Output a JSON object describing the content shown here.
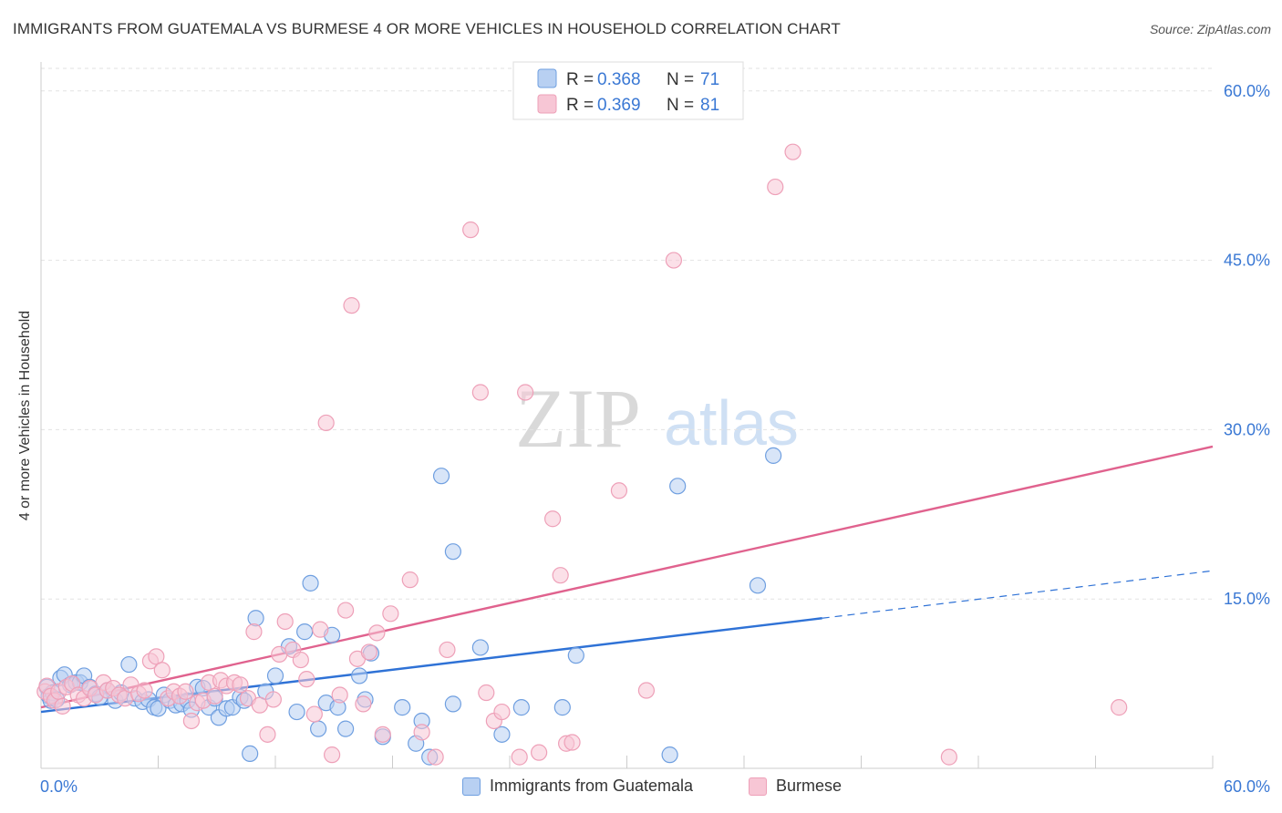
{
  "header": {
    "title": "IMMIGRANTS FROM GUATEMALA VS BURMESE 4 OR MORE VEHICLES IN HOUSEHOLD CORRELATION CHART",
    "source": "Source: ZipAtlas.com"
  },
  "watermark": {
    "zip": "ZIP",
    "atlas": "atlas"
  },
  "chart_data": {
    "type": "scatter",
    "title": "IMMIGRANTS FROM GUATEMALA VS BURMESE 4 OR MORE VEHICLES IN HOUSEHOLD CORRELATION CHART",
    "xlabel": "",
    "ylabel": "4 or more Vehicles in Household",
    "xlim": [
      0,
      60
    ],
    "ylim": [
      0,
      62
    ],
    "x_tick_labels": [
      "0.0%",
      "60.0%"
    ],
    "y_ticks": [
      15,
      30,
      45,
      60
    ],
    "y_tick_labels": [
      "15.0%",
      "30.0%",
      "45.0%",
      "60.0%"
    ],
    "grid": true,
    "legend_position": "top-center",
    "series": [
      {
        "name": "Immigrants from Guatemala",
        "color": "#6f9fe0",
        "fill": "#b8d0f2",
        "line_color": "#2f72d6",
        "r_label": "R =",
        "r_value": "0.368",
        "n_label": "N =",
        "n_value": "71",
        "trend": {
          "x0": 0,
          "y0": 5.0,
          "x1": 40,
          "y1": 13.3,
          "dash_x1": 60,
          "dash_y1": 17.5
        },
        "points": [
          [
            0.3,
            7.2
          ],
          [
            0.4,
            6.4
          ],
          [
            0.5,
            6.0
          ],
          [
            0.6,
            6.7
          ],
          [
            0.8,
            6.1
          ],
          [
            1.0,
            8.0
          ],
          [
            1.2,
            8.3
          ],
          [
            1.5,
            7.4
          ],
          [
            1.8,
            7.6
          ],
          [
            2.0,
            7.6
          ],
          [
            2.2,
            8.2
          ],
          [
            2.5,
            7.2
          ],
          [
            2.8,
            6.6
          ],
          [
            3.0,
            6.3
          ],
          [
            3.4,
            6.9
          ],
          [
            3.8,
            6.0
          ],
          [
            4.1,
            6.7
          ],
          [
            4.5,
            9.2
          ],
          [
            4.8,
            6.2
          ],
          [
            5.2,
            5.9
          ],
          [
            5.5,
            6.1
          ],
          [
            5.8,
            5.4
          ],
          [
            6.0,
            5.3
          ],
          [
            6.3,
            6.5
          ],
          [
            6.6,
            6.0
          ],
          [
            6.9,
            5.6
          ],
          [
            7.2,
            5.7
          ],
          [
            7.5,
            6.0
          ],
          [
            7.7,
            5.2
          ],
          [
            8.0,
            7.2
          ],
          [
            8.3,
            7.1
          ],
          [
            8.6,
            5.4
          ],
          [
            8.9,
            6.2
          ],
          [
            9.1,
            4.5
          ],
          [
            9.5,
            5.3
          ],
          [
            9.8,
            5.4
          ],
          [
            10.2,
            6.3
          ],
          [
            10.4,
            6.0
          ],
          [
            10.7,
            1.3
          ],
          [
            11.0,
            13.3
          ],
          [
            11.5,
            6.8
          ],
          [
            12.0,
            8.2
          ],
          [
            12.7,
            10.8
          ],
          [
            13.1,
            5.0
          ],
          [
            13.5,
            12.1
          ],
          [
            13.8,
            16.4
          ],
          [
            14.2,
            3.5
          ],
          [
            14.6,
            5.8
          ],
          [
            14.9,
            11.8
          ],
          [
            15.2,
            5.4
          ],
          [
            15.6,
            3.5
          ],
          [
            16.3,
            8.2
          ],
          [
            16.6,
            6.1
          ],
          [
            16.9,
            10.2
          ],
          [
            17.5,
            2.8
          ],
          [
            18.5,
            5.4
          ],
          [
            19.2,
            2.2
          ],
          [
            19.5,
            4.2
          ],
          [
            19.9,
            1.0
          ],
          [
            20.5,
            25.9
          ],
          [
            21.1,
            5.7
          ],
          [
            21.1,
            19.2
          ],
          [
            22.5,
            10.7
          ],
          [
            23.6,
            3.0
          ],
          [
            24.6,
            5.4
          ],
          [
            26.7,
            5.4
          ],
          [
            27.4,
            10.0
          ],
          [
            32.2,
            1.2
          ],
          [
            32.6,
            25.0
          ],
          [
            36.7,
            16.2
          ],
          [
            37.5,
            27.7
          ]
        ]
      },
      {
        "name": "Burmese",
        "color": "#eea0b8",
        "fill": "#f7c6d5",
        "line_color": "#e0628e",
        "r_label": "R =",
        "r_value": "0.369",
        "n_label": "N =",
        "n_value": "81",
        "trend": {
          "x0": 0,
          "y0": 5.4,
          "x1": 60,
          "y1": 28.5
        },
        "points": [
          [
            0.2,
            6.8
          ],
          [
            0.3,
            7.3
          ],
          [
            0.5,
            6.4
          ],
          [
            0.7,
            6.0
          ],
          [
            0.9,
            6.8
          ],
          [
            1.1,
            5.5
          ],
          [
            1.3,
            7.2
          ],
          [
            1.6,
            7.5
          ],
          [
            1.9,
            6.5
          ],
          [
            2.2,
            6.2
          ],
          [
            2.5,
            7.1
          ],
          [
            2.8,
            6.5
          ],
          [
            3.2,
            7.6
          ],
          [
            3.4,
            6.9
          ],
          [
            3.7,
            7.1
          ],
          [
            4.0,
            6.5
          ],
          [
            4.3,
            6.2
          ],
          [
            4.6,
            7.4
          ],
          [
            5.0,
            6.6
          ],
          [
            5.3,
            6.9
          ],
          [
            5.6,
            9.5
          ],
          [
            5.9,
            9.9
          ],
          [
            6.2,
            8.7
          ],
          [
            6.5,
            6.2
          ],
          [
            6.8,
            6.8
          ],
          [
            7.1,
            6.4
          ],
          [
            7.4,
            6.8
          ],
          [
            7.7,
            4.2
          ],
          [
            8.0,
            5.8
          ],
          [
            8.3,
            6.0
          ],
          [
            8.6,
            7.6
          ],
          [
            8.9,
            6.4
          ],
          [
            9.2,
            7.8
          ],
          [
            9.5,
            7.3
          ],
          [
            9.9,
            7.6
          ],
          [
            10.2,
            7.4
          ],
          [
            10.6,
            6.2
          ],
          [
            10.9,
            12.1
          ],
          [
            11.2,
            5.6
          ],
          [
            11.6,
            3.0
          ],
          [
            11.9,
            6.1
          ],
          [
            12.2,
            10.1
          ],
          [
            12.5,
            13.0
          ],
          [
            12.9,
            10.5
          ],
          [
            13.3,
            9.6
          ],
          [
            13.6,
            7.9
          ],
          [
            14.0,
            4.8
          ],
          [
            14.3,
            12.3
          ],
          [
            14.6,
            30.6
          ],
          [
            14.9,
            1.2
          ],
          [
            15.3,
            6.5
          ],
          [
            15.6,
            14.0
          ],
          [
            15.9,
            41.0
          ],
          [
            16.2,
            9.7
          ],
          [
            16.5,
            5.7
          ],
          [
            16.8,
            10.3
          ],
          [
            17.2,
            12.0
          ],
          [
            17.5,
            3.0
          ],
          [
            17.9,
            13.7
          ],
          [
            18.9,
            16.7
          ],
          [
            19.5,
            3.2
          ],
          [
            20.2,
            1.0
          ],
          [
            20.8,
            10.5
          ],
          [
            22.0,
            47.7
          ],
          [
            22.5,
            33.3
          ],
          [
            22.8,
            6.7
          ],
          [
            23.2,
            4.2
          ],
          [
            23.6,
            5.0
          ],
          [
            24.5,
            1.0
          ],
          [
            24.8,
            33.3
          ],
          [
            25.5,
            1.4
          ],
          [
            26.2,
            22.1
          ],
          [
            26.6,
            17.1
          ],
          [
            26.9,
            2.2
          ],
          [
            27.2,
            2.3
          ],
          [
            29.6,
            24.6
          ],
          [
            31.0,
            6.9
          ],
          [
            32.4,
            45.0
          ],
          [
            37.6,
            51.5
          ],
          [
            38.5,
            54.6
          ],
          [
            46.5,
            1.0
          ],
          [
            55.2,
            5.4
          ]
        ]
      }
    ]
  }
}
